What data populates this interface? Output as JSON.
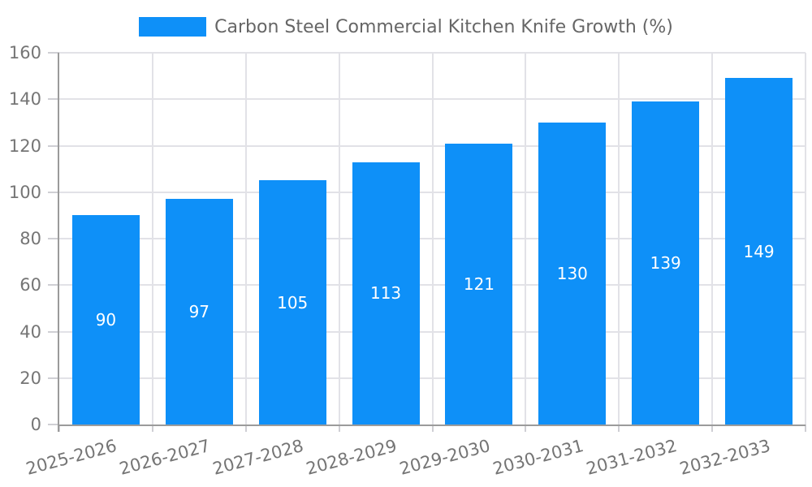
{
  "chart_data": {
    "type": "bar",
    "title": "Carbon Steel Commercial Kitchen Knife Growth (%)",
    "categories": [
      "2025-2026",
      "2026-2027",
      "2027-2028",
      "2028-2029",
      "2029-2030",
      "2030-2031",
      "2031-2032",
      "2032-2033"
    ],
    "series": [
      {
        "name": "Carbon Steel Commercial Kitchen Knife Growth (%)",
        "values": [
          90,
          97,
          105,
          113,
          121,
          130,
          139,
          149
        ]
      }
    ],
    "xlabel": "",
    "ylabel": "",
    "ylim": [
      0,
      160
    ],
    "yticks": [
      0,
      20,
      40,
      60,
      80,
      100,
      120,
      140,
      160
    ],
    "grid": true,
    "legend_position": "top-center",
    "x_label_rotation_deg": 15,
    "bar_color": "#0E90F8",
    "value_label_color": "#FFFFFF",
    "axis_text_color": "#757575",
    "title_color": "#666666",
    "grid_color": "#E2E2E7",
    "tick_color": "#CFCFD4",
    "axis_line_color": "#9B9B9B"
  }
}
